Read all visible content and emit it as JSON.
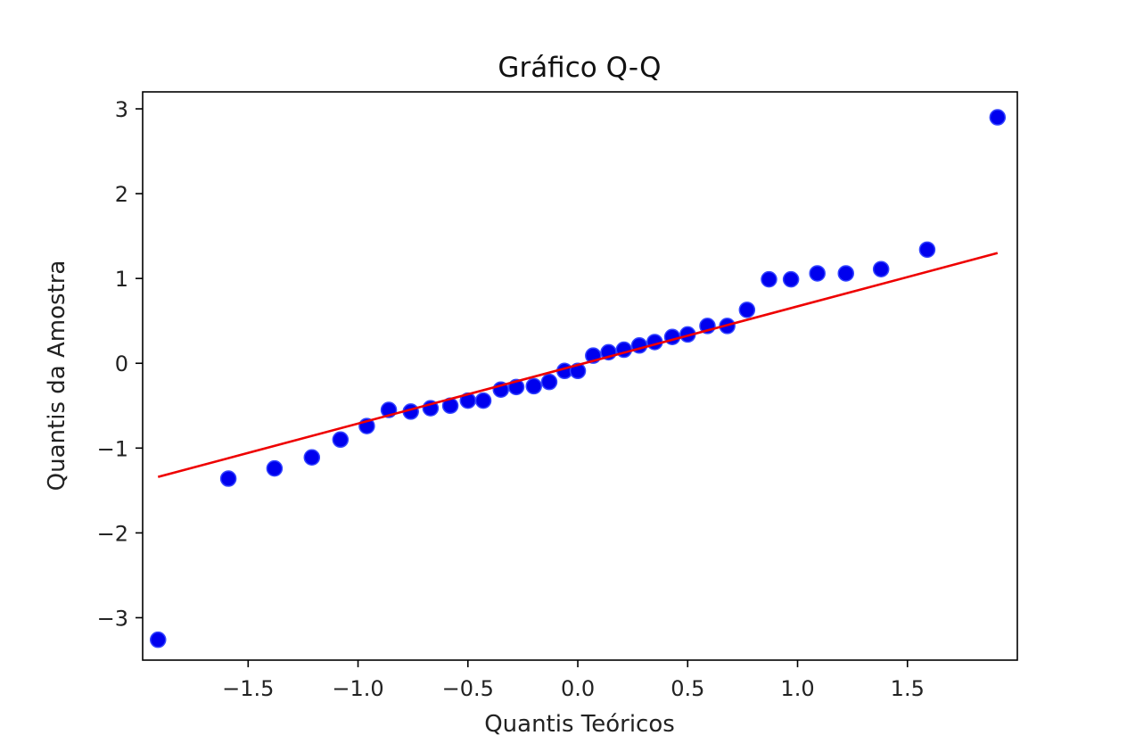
{
  "chart_data": {
    "type": "scatter",
    "title": "Gráfico Q-Q",
    "xlabel": "Quantis Teóricos",
    "ylabel": "Quantis da Amostra",
    "xlim": [
      -1.98,
      2.0
    ],
    "ylim": [
      -3.5,
      3.2
    ],
    "grid": false,
    "x_ticks": [
      -1.5,
      -1.0,
      -0.5,
      0.0,
      0.5,
      1.0,
      1.5
    ],
    "x_tick_labels": [
      "−1.5",
      "−1.0",
      "−0.5",
      "0.0",
      "0.5",
      "1.0",
      "1.5"
    ],
    "y_ticks": [
      3,
      2,
      1,
      0,
      -1,
      -2,
      -3
    ],
    "y_tick_labels": [
      "3",
      "2",
      "1",
      "0",
      "−1",
      "−2",
      "−3"
    ],
    "point_color": "#0000ee",
    "line_color": "#ee0000",
    "points": [
      {
        "x": -1.91,
        "y": -3.26
      },
      {
        "x": -1.59,
        "y": -1.36
      },
      {
        "x": -1.38,
        "y": -1.24
      },
      {
        "x": -1.21,
        "y": -1.11
      },
      {
        "x": -1.08,
        "y": -0.9
      },
      {
        "x": -0.96,
        "y": -0.74
      },
      {
        "x": -0.86,
        "y": -0.55
      },
      {
        "x": -0.76,
        "y": -0.57
      },
      {
        "x": -0.67,
        "y": -0.53
      },
      {
        "x": -0.58,
        "y": -0.5
      },
      {
        "x": -0.5,
        "y": -0.44
      },
      {
        "x": -0.43,
        "y": -0.44
      },
      {
        "x": -0.35,
        "y": -0.31
      },
      {
        "x": -0.28,
        "y": -0.28
      },
      {
        "x": -0.2,
        "y": -0.27
      },
      {
        "x": -0.13,
        "y": -0.22
      },
      {
        "x": -0.06,
        "y": -0.09
      },
      {
        "x": -0.0,
        "y": -0.09
      },
      {
        "x": 0.07,
        "y": 0.09
      },
      {
        "x": 0.14,
        "y": 0.13
      },
      {
        "x": 0.21,
        "y": 0.16
      },
      {
        "x": 0.28,
        "y": 0.21
      },
      {
        "x": 0.35,
        "y": 0.25
      },
      {
        "x": 0.43,
        "y": 0.31
      },
      {
        "x": 0.5,
        "y": 0.34
      },
      {
        "x": 0.59,
        "y": 0.44
      },
      {
        "x": 0.68,
        "y": 0.44
      },
      {
        "x": 0.77,
        "y": 0.63
      },
      {
        "x": 0.87,
        "y": 0.99
      },
      {
        "x": 0.97,
        "y": 0.99
      },
      {
        "x": 1.09,
        "y": 1.06
      },
      {
        "x": 1.22,
        "y": 1.06
      },
      {
        "x": 1.38,
        "y": 1.11
      },
      {
        "x": 1.59,
        "y": 1.34
      },
      {
        "x": 1.91,
        "y": 2.9
      }
    ],
    "reference_line": {
      "x": [
        -1.91,
        1.91
      ],
      "y": [
        -1.34,
        1.3
      ]
    }
  }
}
